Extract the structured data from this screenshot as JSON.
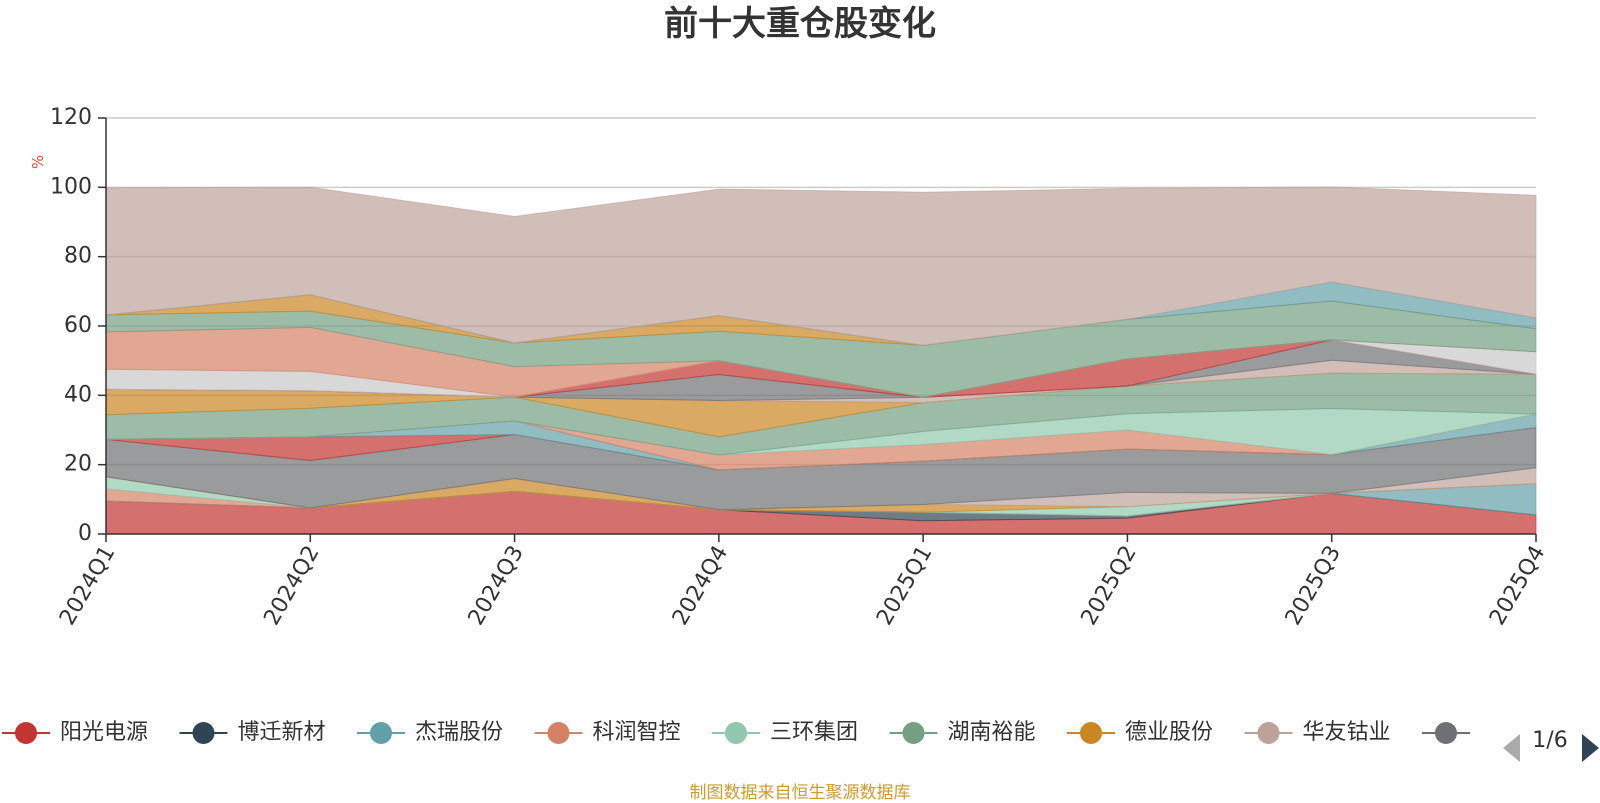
{
  "source_note": "制图数据来自恒生聚源数据库",
  "pager": {
    "text": "1/6"
  },
  "chart_data": {
    "type": "area",
    "title": "前十大重仓股变化",
    "ylabel": "%",
    "xlabel": "",
    "ylim": [
      0,
      120
    ],
    "yticks": [
      0,
      20,
      40,
      60,
      80,
      100,
      120
    ],
    "stacked": true,
    "grid": true,
    "legend_position": "bottom",
    "categories": [
      "2024Q1",
      "2024Q2",
      "2024Q3",
      "2024Q4",
      "2025Q1",
      "2025Q2",
      "2025Q3",
      "2025Q4"
    ],
    "legend": [
      {
        "name": "阳光电源",
        "color": "#c23531"
      },
      {
        "name": "博迁新材",
        "color": "#2f4554"
      },
      {
        "name": "杰瑞股份",
        "color": "#61a0a8"
      },
      {
        "name": "科润智控",
        "color": "#d48265"
      },
      {
        "name": "三环集团",
        "color": "#91c7ae"
      },
      {
        "name": "湖南裕能",
        "color": "#749f83"
      },
      {
        "name": "德业股份",
        "color": "#ca8622"
      },
      {
        "name": "华友钴业",
        "color": "#bda29a"
      },
      {
        "name": "",
        "color": "#6e7074"
      }
    ],
    "series": [
      {
        "name": "阳光电源",
        "color": "#c23531",
        "values": [
          9.5,
          7.5,
          12.3,
          7.0,
          3.8,
          4.6,
          11.7,
          5.5
        ]
      },
      {
        "name": "博迁新材",
        "color": "#2f4554",
        "values": [
          0,
          0,
          0,
          0,
          2.5,
          0.6,
          0,
          0
        ]
      },
      {
        "name": "杰瑞股份",
        "color": "#61a0a8",
        "values": [
          0,
          0,
          0,
          0,
          0,
          0,
          0,
          9.0
        ]
      },
      {
        "name": "科润智控",
        "color": "#d48265",
        "values": [
          3.5,
          0,
          0,
          0,
          0,
          0,
          0,
          0
        ]
      },
      {
        "name": "三环集团",
        "color": "#91c7ae",
        "values": [
          3.5,
          0,
          0,
          0,
          0,
          2.7,
          0,
          0
        ]
      },
      {
        "name": "湖南裕能",
        "color": "#749f83",
        "values": [
          0,
          0,
          0,
          0,
          0,
          0,
          0,
          0
        ]
      },
      {
        "name": "德业股份",
        "color": "#ca8622",
        "values": [
          0,
          0,
          3.7,
          0,
          2.2,
          0,
          0,
          0
        ]
      },
      {
        "name": "华友钴业",
        "color": "#bda29a",
        "values": [
          0,
          0,
          0,
          0,
          0,
          4.1,
          0,
          4.6
        ]
      },
      {
        "name": "",
        "color": "#6e7074",
        "values": [
          10.8,
          13.7,
          12.7,
          11.5,
          12.5,
          12.5,
          11.2,
          11.6
        ]
      },
      {
        "name": "",
        "color": "#c23531",
        "values": [
          0,
          6.8,
          0,
          0,
          0,
          0,
          0,
          0
        ]
      },
      {
        "name": "",
        "color": "#61a0a8",
        "values": [
          0,
          0,
          3.9,
          0,
          0,
          0,
          0,
          3.9
        ]
      },
      {
        "name": "",
        "color": "#d48265",
        "values": [
          0,
          0,
          0,
          4.3,
          4.8,
          5.5,
          0,
          0
        ]
      },
      {
        "name": "",
        "color": "#91c7ae",
        "values": [
          0,
          0,
          0,
          0,
          3.8,
          4.7,
          13.3,
          0
        ]
      },
      {
        "name": "",
        "color": "#749f83",
        "values": [
          7.1,
          8.3,
          6.9,
          5.2,
          8.3,
          8.0,
          10.2,
          11.5
        ]
      },
      {
        "name": "",
        "color": "#ca8622",
        "values": [
          7.3,
          5.0,
          0,
          10.5,
          0,
          0,
          0,
          0
        ]
      },
      {
        "name": "",
        "color": "#bda29a",
        "values": [
          0,
          0,
          0,
          0,
          1.5,
          0,
          3.7,
          0
        ]
      },
      {
        "name": "",
        "color": "#6e7074",
        "values": [
          0,
          0,
          0,
          7.5,
          0,
          0,
          5.9,
          0
        ]
      },
      {
        "name": "",
        "color": "#c23531",
        "values": [
          0,
          0,
          0,
          4.0,
          0,
          7.8,
          0,
          0
        ]
      },
      {
        "name": "",
        "color": "#c8c8c8",
        "values": [
          5.8,
          5.6,
          0,
          0,
          0,
          0,
          0,
          6.5
        ]
      },
      {
        "name": "",
        "color": "#d48265",
        "values": [
          10.8,
          12.7,
          8.8,
          0,
          0,
          0,
          0,
          0
        ]
      },
      {
        "name": "",
        "color": "#749f83",
        "values": [
          4.9,
          4.7,
          6.8,
          8.5,
          15.0,
          11.4,
          11.2,
          6.6
        ]
      },
      {
        "name": "",
        "color": "#ca8622",
        "values": [
          0,
          4.7,
          0,
          4.5,
          0,
          0,
          0,
          0
        ]
      },
      {
        "name": "",
        "color": "#61a0a8",
        "values": [
          0,
          0,
          0,
          0,
          0,
          0,
          5.5,
          3.1
        ]
      },
      {
        "name": "",
        "color": "#bda29a",
        "values": [
          36.7,
          31.0,
          36.5,
          36.5,
          44.2,
          37.8,
          27.4,
          35.4
        ]
      }
    ]
  }
}
